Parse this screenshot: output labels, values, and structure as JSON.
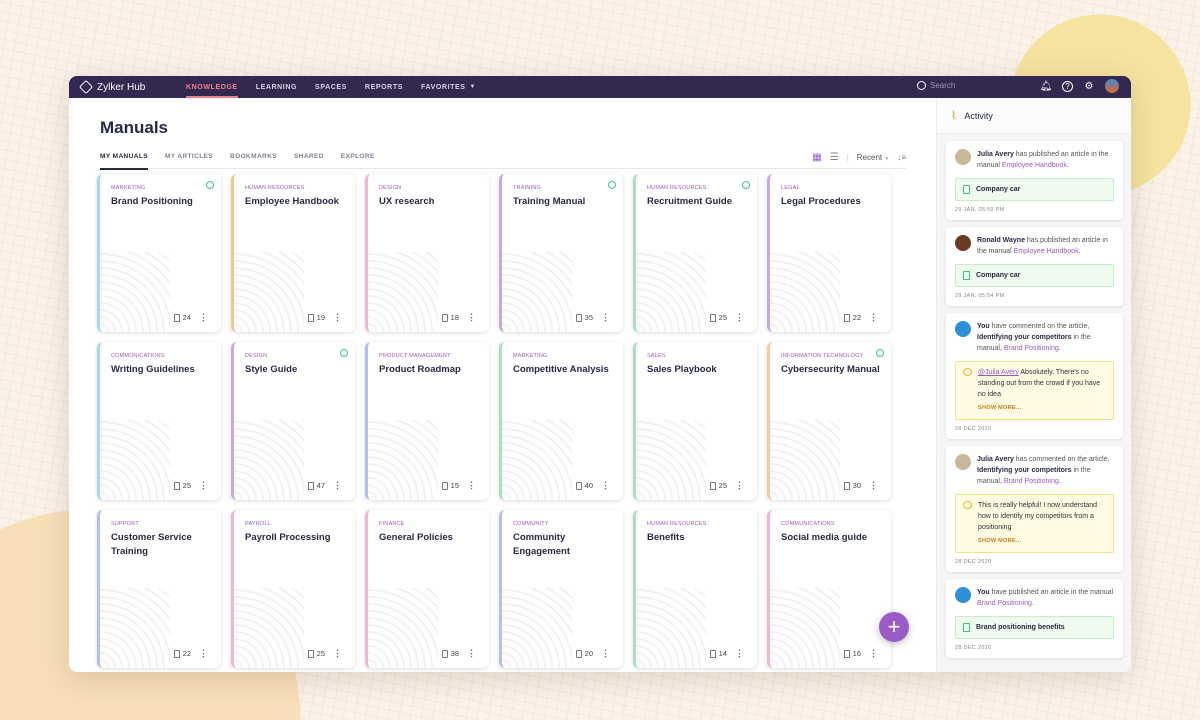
{
  "app": {
    "name": "Zylker Hub"
  },
  "nav": {
    "items": [
      "KNOWLEDGE",
      "LEARNING",
      "SPACES",
      "REPORTS",
      "FAVORITES"
    ],
    "active": "KNOWLEDGE",
    "search_placeholder": "Search"
  },
  "page": {
    "title": "Manuals",
    "tabs": [
      "MY MANUALS",
      "MY ARTICLES",
      "BOOKMARKS",
      "SHARED",
      "EXPLORE"
    ],
    "active_tab": "MY MANUALS",
    "sort": "Recent",
    "view": "grid"
  },
  "colors": {
    "accent": "#9b59c6",
    "nav_bg": "#322850",
    "active_nav": "#f07f8b"
  },
  "manuals": [
    {
      "category": "Marketing",
      "title": "Brand Positioning",
      "count": "24",
      "shared": true,
      "color": "#a6d8ef"
    },
    {
      "category": "Human Resources",
      "title": "Employee Handbook",
      "count": "19",
      "shared": false,
      "color": "#ecc98a"
    },
    {
      "category": "Design",
      "title": "UX research",
      "count": "18",
      "shared": false,
      "color": "#f0b6d6"
    },
    {
      "category": "Training",
      "title": "Training Manual",
      "count": "35",
      "shared": true,
      "color": "#c7a9e6"
    },
    {
      "category": "Human Resources",
      "title": "Recruitment Guide",
      "count": "25",
      "shared": true,
      "color": "#a8e0c0"
    },
    {
      "category": "Legal",
      "title": "Legal Procedures",
      "count": "22",
      "shared": false,
      "color": "#c7a9e6"
    },
    {
      "category": "Communications",
      "title": "Writing Guidelines",
      "count": "25",
      "shared": false,
      "color": "#a6d8ef"
    },
    {
      "category": "Design",
      "title": "Style Guide",
      "count": "47",
      "shared": true,
      "color": "#c7a9e6"
    },
    {
      "category": "Product Management",
      "title": "Product Roadmap",
      "count": "15",
      "shared": false,
      "color": "#b7bdf0"
    },
    {
      "category": "Marketing",
      "title": "Competitive Analysis",
      "count": "40",
      "shared": false,
      "color": "#a8e0c0"
    },
    {
      "category": "Sales",
      "title": "Sales Playbook",
      "count": "25",
      "shared": false,
      "color": "#a8e0c0"
    },
    {
      "category": "Information Technology",
      "title": "Cybersecurity Manual",
      "count": "30",
      "shared": true,
      "color": "#f5c9a4"
    },
    {
      "category": "Support",
      "title": "Customer Service Training",
      "count": "22",
      "shared": false,
      "color": "#b7bdf0"
    },
    {
      "category": "Payroll",
      "title": "Payroll Processing",
      "count": "25",
      "shared": false,
      "color": "#f0b6d6"
    },
    {
      "category": "Finance",
      "title": "General Policies",
      "count": "38",
      "shared": false,
      "color": "#f0b6d6"
    },
    {
      "category": "Community",
      "title": "Community Engagement",
      "count": "20",
      "shared": false,
      "color": "#b7bdf0"
    },
    {
      "category": "Human Resources",
      "title": "Benefits",
      "count": "14",
      "shared": false,
      "color": "#a8e0c0"
    },
    {
      "category": "Communications",
      "title": "Social media guide",
      "count": "16",
      "shared": false,
      "color": "#f0b6d6"
    }
  ],
  "activity": {
    "title": "Activity",
    "items": [
      {
        "avatar": "#c9b79a",
        "segments": [
          {
            "t": "Julia Avery",
            "s": "b"
          },
          {
            "t": " has published an article in the manual "
          },
          {
            "t": "Employee Handbook",
            "s": "lk"
          },
          {
            "t": "."
          }
        ],
        "box_type": "art",
        "box_text": "Company car",
        "time": "29 JAN, 05:59 PM"
      },
      {
        "avatar": "#6b3a24",
        "segments": [
          {
            "t": "Ronald Wayne",
            "s": "b"
          },
          {
            "t": " has published an article in the manual "
          },
          {
            "t": "Employee Handbook",
            "s": "lk"
          },
          {
            "t": "."
          }
        ],
        "box_type": "art",
        "box_text": "Company car",
        "time": "29 JAN, 05:54 PM"
      },
      {
        "avatar": "#2f8fd8",
        "segments": [
          {
            "t": "You",
            "s": "b"
          },
          {
            "t": " have commented on the article, "
          },
          {
            "t": "Identifying your competitors",
            "s": "b"
          },
          {
            "t": " in the manual, "
          },
          {
            "t": "Brand Positioning",
            "s": "lk"
          },
          {
            "t": "."
          }
        ],
        "box_type": "cmt",
        "mention": "@Julia Avery",
        "box_text": " Absolutely. There's no standing out from the crowd if you have no idea",
        "show_more": "SHOW MORE...",
        "time": "28 DEC 2020"
      },
      {
        "avatar": "#c9b79a",
        "segments": [
          {
            "t": "Julia Avery",
            "s": "b"
          },
          {
            "t": " has commented on the article, "
          },
          {
            "t": "Identifying your competitors",
            "s": "b"
          },
          {
            "t": " in the manual, "
          },
          {
            "t": "Brand Positioning",
            "s": "lk"
          },
          {
            "t": "."
          }
        ],
        "box_type": "cmt",
        "box_text": "This is really helpful! I now understand how to identify my competitors from a positioning",
        "show_more": "SHOW MORE...",
        "time": "28 DEC 2020"
      },
      {
        "avatar": "#2f8fd8",
        "segments": [
          {
            "t": "You",
            "s": "b"
          },
          {
            "t": " have published an article in the manual "
          },
          {
            "t": "Brand Positioning",
            "s": "lk"
          },
          {
            "t": "."
          }
        ],
        "box_type": "art",
        "box_text": "Brand positioning benefits",
        "time": "28 DEC 2020"
      }
    ]
  }
}
